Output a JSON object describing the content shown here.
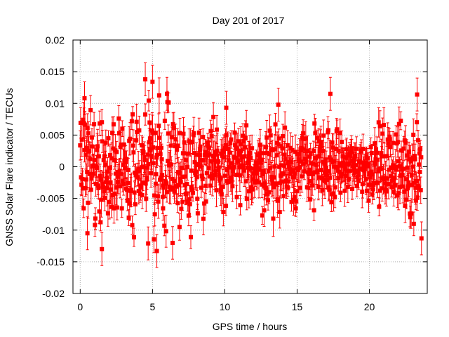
{
  "chart_data": {
    "type": "scatter",
    "title": "Day 201 of 2017",
    "xlabel": "GPS time / hours",
    "ylabel": "GNSS Solar Flare indicator / TECUs",
    "xlim": [
      -0.5,
      24
    ],
    "ylim": [
      -0.02,
      0.02
    ],
    "x_ticks": [
      0,
      5,
      10,
      15,
      20
    ],
    "x_tick_labels": [
      "0",
      "5",
      "10",
      "15",
      "20"
    ],
    "y_ticks": [
      -0.02,
      -0.015,
      -0.01,
      -0.005,
      0,
      0.005,
      0.01,
      0.015,
      0.02
    ],
    "y_tick_labels": [
      "-0.02",
      "-0.015",
      "-0.01",
      "-0.005",
      "0",
      "0.005",
      "0.01",
      "0.015",
      "0.02"
    ],
    "grid": true,
    "series": [
      {
        "name": "GNSS Solar Flare indicator",
        "color": "#ff0000",
        "marker": "square",
        "error_bars": true,
        "x_start": 0.0,
        "x_end": 23.6,
        "sample_step_hours": 0.03,
        "envelope_hours": [
          0,
          1,
          2,
          3,
          4,
          5,
          6,
          7,
          8,
          9,
          10,
          11,
          12,
          13,
          14,
          15,
          16,
          17,
          18,
          19,
          20,
          21,
          22,
          23,
          23.6
        ],
        "envelope_sigma": [
          0.0045,
          0.0042,
          0.004,
          0.004,
          0.0046,
          0.0052,
          0.005,
          0.0042,
          0.0035,
          0.003,
          0.0028,
          0.0026,
          0.0026,
          0.0034,
          0.0034,
          0.003,
          0.003,
          0.0032,
          0.0024,
          0.0022,
          0.0024,
          0.003,
          0.0034,
          0.004,
          0.0045
        ],
        "error_bar_sigma": 0.002,
        "notable_points": [
          {
            "x": 1.5,
            "y": -0.013
          },
          {
            "x": 4.5,
            "y": 0.0138
          },
          {
            "x": 5.0,
            "y": 0.0134
          },
          {
            "x": 5.3,
            "y": -0.0133
          },
          {
            "x": 4.7,
            "y": -0.0121
          },
          {
            "x": 17.3,
            "y": 0.0115
          },
          {
            "x": 23.3,
            "y": 0.0114
          },
          {
            "x": 23.6,
            "y": -0.0113
          },
          {
            "x": 10.1,
            "y": 0.0093
          },
          {
            "x": 0.3,
            "y": 0.0108
          },
          {
            "x": 6.0,
            "y": 0.0115
          },
          {
            "x": 13.7,
            "y": 0.0098
          },
          {
            "x": 0.5,
            "y": -0.0105
          }
        ]
      }
    ]
  }
}
